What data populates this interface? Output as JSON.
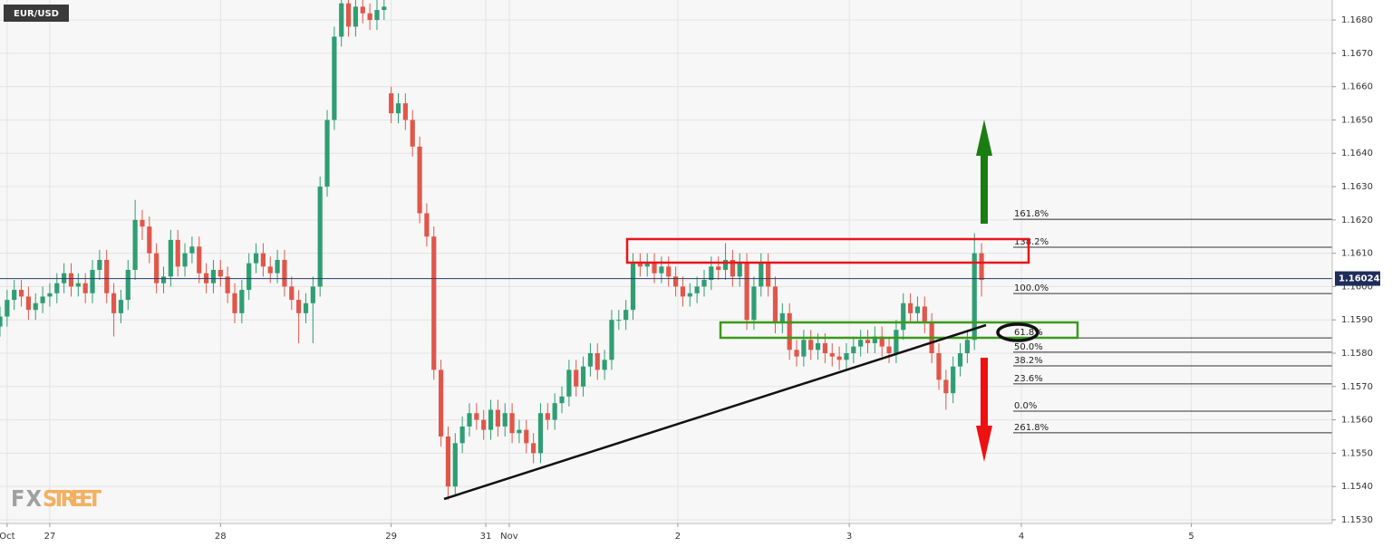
{
  "chart_data": {
    "type": "candlestick",
    "title": "EUR/USD",
    "watermark": [
      "FX",
      "STREET"
    ],
    "up_color": "#2f9e74",
    "down_color": "#e0574a",
    "xlim": [
      0,
      187.3
    ],
    "ylim": [
      1.15289,
      1.1686
    ],
    "grid": true,
    "xticks": [
      {
        "value": 1,
        "label": "Oct"
      },
      {
        "value": 7,
        "label": "27"
      },
      {
        "value": 31,
        "label": "28"
      },
      {
        "value": 55,
        "label": "29"
      },
      {
        "value": 68.3,
        "label": "31"
      },
      {
        "value": 71.6,
        "label": "Nov"
      },
      {
        "value": 95.3,
        "label": "2"
      },
      {
        "value": 119.4,
        "label": "3"
      },
      {
        "value": 143.6,
        "label": "4"
      },
      {
        "value": 167.5,
        "label": "5"
      }
    ],
    "yticks": [
      {
        "value": 1.153,
        "label": "1.1530"
      },
      {
        "value": 1.154,
        "label": "1.1540"
      },
      {
        "value": 1.155,
        "label": "1.1550"
      },
      {
        "value": 1.156,
        "label": "1.1560"
      },
      {
        "value": 1.157,
        "label": "1.1570"
      },
      {
        "value": 1.158,
        "label": "1.1580"
      },
      {
        "value": 1.159,
        "label": "1.1590"
      },
      {
        "value": 1.16,
        "label": "1.1600"
      },
      {
        "value": 1.161,
        "label": "1.1610"
      },
      {
        "value": 1.162,
        "label": "1.1620"
      },
      {
        "value": 1.163,
        "label": "1.1630"
      },
      {
        "value": 1.164,
        "label": "1.1640"
      },
      {
        "value": 1.165,
        "label": "1.1650"
      },
      {
        "value": 1.166,
        "label": "1.1660"
      },
      {
        "value": 1.167,
        "label": "1.1670"
      },
      {
        "value": 1.168,
        "label": "1.1680"
      }
    ],
    "last_price": 1.16024,
    "fib_levels": [
      {
        "label": "261.8%",
        "price": 1.15561
      },
      {
        "label": "161.8%",
        "price": 1.16202
      },
      {
        "label": "138.2%",
        "price": 1.16118
      },
      {
        "label": "100.0%",
        "price": 1.15979
      },
      {
        "label": "61.8%",
        "price": 1.15846
      },
      {
        "label": "50.0%",
        "price": 1.15803
      },
      {
        "label": "38.2%",
        "price": 1.15762
      },
      {
        "label": "23.6%",
        "price": 1.15708
      },
      {
        "label": "0.0%",
        "price": 1.15626
      }
    ],
    "open": [
      1.1588,
      1.1591,
      1.1596,
      1.1599,
      1.1597,
      1.1593,
      1.1595,
      1.1597,
      1.1598,
      1.1601,
      1.1604,
      1.16,
      1.1601,
      1.1598,
      1.1605,
      1.1608,
      1.1598,
      1.1592,
      1.1596,
      1.1605,
      1.162,
      1.1618,
      1.161,
      1.1601,
      1.1603,
      1.1614,
      1.1606,
      1.161,
      1.1612,
      1.1604,
      1.1601,
      1.1605,
      1.1603,
      1.1598,
      1.1592,
      1.1599,
      1.1607,
      1.161,
      1.1606,
      1.1604,
      1.1608,
      1.16,
      1.1596,
      1.1592,
      1.1595,
      1.16,
      1.163,
      1.165,
      1.1675,
      1.1685,
      1.1678,
      1.1684,
      1.1682,
      1.168,
      1.1683,
      1.1658,
      1.1652,
      1.1655,
      1.165,
      1.1642,
      1.1622,
      1.1615,
      1.1575,
      1.1555,
      1.154,
      1.1553,
      1.1558,
      1.1562,
      1.156,
      1.1557,
      1.1563,
      1.1558,
      1.1562,
      1.1556,
      1.1557,
      1.1553,
      1.155,
      1.1562,
      1.156,
      1.1565,
      1.1567,
      1.1575,
      1.157,
      1.1576,
      1.158,
      1.1575,
      1.1578,
      1.159,
      1.159,
      1.1593,
      1.1607,
      1.1606,
      1.1607,
      1.1604,
      1.1606,
      1.1603,
      1.16,
      1.1597,
      1.1598,
      1.16,
      1.1602,
      1.1606,
      1.1605,
      1.1608,
      1.1603,
      1.1607,
      1.159,
      1.16,
      1.1607,
      1.16,
      1.1589,
      1.1592,
      1.1581,
      1.1579,
      1.1584,
      1.1581,
      1.1583,
      1.158,
      1.1579,
      1.1578,
      1.158,
      1.1582,
      1.1584,
      1.1583,
      1.1585,
      1.1582,
      1.158,
      1.1587,
      1.1595,
      1.1592,
      1.1594,
      1.1589,
      1.158,
      1.1572,
      1.1568,
      1.1576,
      1.158,
      1.1584,
      1.161
    ],
    "high": [
      1.1594,
      1.1599,
      1.1602,
      1.1602,
      1.16,
      1.1598,
      1.16,
      1.1601,
      1.1604,
      1.1607,
      1.1607,
      1.1604,
      1.1604,
      1.1608,
      1.1611,
      1.1611,
      1.1601,
      1.1599,
      1.1608,
      1.1626,
      1.1623,
      1.1621,
      1.1613,
      1.1606,
      1.1617,
      1.1617,
      1.1613,
      1.1615,
      1.1615,
      1.1607,
      1.1608,
      1.1608,
      1.1606,
      1.1601,
      1.1602,
      1.161,
      1.1613,
      1.1613,
      1.1609,
      1.1611,
      1.1611,
      1.1603,
      1.1599,
      1.1598,
      1.1603,
      1.1633,
      1.1653,
      1.1678,
      1.1689,
      1.1688,
      1.1688,
      1.1687,
      1.1685,
      1.1686,
      1.1687,
      1.166,
      1.1658,
      1.1658,
      1.1653,
      1.1645,
      1.1625,
      1.1618,
      1.1578,
      1.1558,
      1.1556,
      1.1561,
      1.1565,
      1.1565,
      1.1563,
      1.1566,
      1.1566,
      1.1565,
      1.1565,
      1.156,
      1.156,
      1.1556,
      1.1565,
      1.1565,
      1.1568,
      1.157,
      1.1578,
      1.1578,
      1.1579,
      1.1583,
      1.1583,
      1.1581,
      1.1593,
      1.1593,
      1.1596,
      1.161,
      1.161,
      1.161,
      1.161,
      1.1609,
      1.1609,
      1.1606,
      1.1603,
      1.1601,
      1.1603,
      1.1605,
      1.1609,
      1.1609,
      1.1613,
      1.1611,
      1.161,
      1.161,
      1.1603,
      1.161,
      1.161,
      1.1603,
      1.1595,
      1.1595,
      1.1584,
      1.1587,
      1.1587,
      1.1586,
      1.1586,
      1.1583,
      1.1582,
      1.1583,
      1.1585,
      1.1587,
      1.1587,
      1.1588,
      1.1588,
      1.1585,
      1.159,
      1.1598,
      1.1598,
      1.1597,
      1.1597,
      1.1592,
      1.1583,
      1.1575,
      1.1579,
      1.1583,
      1.1587,
      1.1616,
      1.1613
    ],
    "low": [
      1.1585,
      1.1588,
      1.1593,
      1.1594,
      1.159,
      1.159,
      1.1592,
      1.1594,
      1.1595,
      1.1598,
      1.1597,
      1.1597,
      1.1595,
      1.1595,
      1.1602,
      1.1595,
      1.1585,
      1.1589,
      1.1593,
      1.1602,
      1.1614,
      1.1607,
      1.1598,
      1.1598,
      1.16,
      1.1603,
      1.1603,
      1.1607,
      1.1601,
      1.1598,
      1.1598,
      1.16,
      1.1595,
      1.1589,
      1.1589,
      1.1596,
      1.1604,
      1.1603,
      1.1601,
      1.1601,
      1.1597,
      1.1593,
      1.1583,
      1.1589,
      1.1583,
      1.1597,
      1.1627,
      1.1647,
      1.1672,
      1.1675,
      1.1675,
      1.1679,
      1.1677,
      1.1677,
      1.168,
      1.1649,
      1.1649,
      1.1647,
      1.1639,
      1.1619,
      1.1612,
      1.1572,
      1.1552,
      1.1536,
      1.1537,
      1.155,
      1.1555,
      1.1557,
      1.1554,
      1.1554,
      1.1555,
      1.1555,
      1.1553,
      1.1553,
      1.155,
      1.1547,
      1.1547,
      1.1557,
      1.1557,
      1.1562,
      1.1564,
      1.1567,
      1.1567,
      1.1573,
      1.1572,
      1.1572,
      1.1575,
      1.1587,
      1.1587,
      1.159,
      1.1603,
      1.1603,
      1.1601,
      1.1601,
      1.16,
      1.1597,
      1.1594,
      1.1594,
      1.1595,
      1.1597,
      1.1599,
      1.1602,
      1.1602,
      1.16,
      1.16,
      1.1587,
      1.1587,
      1.1597,
      1.1597,
      1.1586,
      1.1586,
      1.1578,
      1.1576,
      1.1576,
      1.1578,
      1.1578,
      1.1577,
      1.1576,
      1.1575,
      1.1575,
      1.1577,
      1.1579,
      1.158,
      1.158,
      1.1579,
      1.1577,
      1.1577,
      1.1584,
      1.1589,
      1.1589,
      1.1586,
      1.1577,
      1.1569,
      1.1563,
      1.1565,
      1.1573,
      1.1577,
      1.1581,
      1.1597
    ],
    "close": [
      1.1591,
      1.1596,
      1.1599,
      1.1597,
      1.1593,
      1.1595,
      1.1597,
      1.1598,
      1.1601,
      1.1604,
      1.16,
      1.1601,
      1.1598,
      1.1605,
      1.1608,
      1.1598,
      1.1592,
      1.1596,
      1.1605,
      1.162,
      1.1618,
      1.161,
      1.1601,
      1.1603,
      1.1614,
      1.1606,
      1.161,
      1.1612,
      1.1604,
      1.1601,
      1.1605,
      1.1603,
      1.1598,
      1.1592,
      1.1599,
      1.1607,
      1.161,
      1.1606,
      1.1604,
      1.1608,
      1.16,
      1.1596,
      1.1592,
      1.1595,
      1.16,
      1.163,
      1.165,
      1.1675,
      1.1685,
      1.1678,
      1.1684,
      1.1682,
      1.168,
      1.1683,
      1.1684,
      1.1652,
      1.1655,
      1.165,
      1.1642,
      1.1622,
      1.1615,
      1.1575,
      1.1555,
      1.154,
      1.1553,
      1.1558,
      1.1562,
      1.156,
      1.1557,
      1.1563,
      1.1558,
      1.1562,
      1.1556,
      1.1557,
      1.1553,
      1.155,
      1.1562,
      1.156,
      1.1565,
      1.1567,
      1.1575,
      1.157,
      1.1576,
      1.158,
      1.1575,
      1.1578,
      1.159,
      1.159,
      1.1593,
      1.1607,
      1.1606,
      1.1607,
      1.1604,
      1.1606,
      1.1603,
      1.16,
      1.1597,
      1.1598,
      1.16,
      1.1602,
      1.1606,
      1.1605,
      1.1608,
      1.1603,
      1.1607,
      1.159,
      1.16,
      1.1607,
      1.16,
      1.1589,
      1.1592,
      1.1581,
      1.1579,
      1.1584,
      1.1581,
      1.1583,
      1.158,
      1.1579,
      1.1578,
      1.158,
      1.1582,
      1.1584,
      1.1583,
      1.1585,
      1.1582,
      1.158,
      1.1587,
      1.1595,
      1.1592,
      1.1594,
      1.1589,
      1.158,
      1.1572,
      1.1568,
      1.1576,
      1.158,
      1.1584,
      1.161,
      1.1602
    ]
  }
}
